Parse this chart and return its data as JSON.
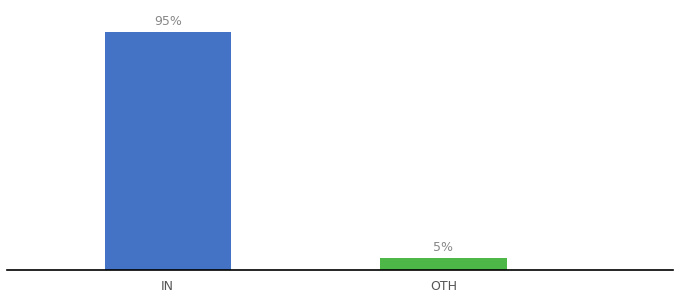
{
  "categories": [
    "IN",
    "OTH"
  ],
  "values": [
    95,
    5
  ],
  "bar_colors": [
    "#4472c4",
    "#4db848"
  ],
  "value_labels": [
    "95%",
    "5%"
  ],
  "background_color": "#ffffff",
  "ylim": [
    0,
    105
  ],
  "bar_width": 0.55,
  "label_fontsize": 9,
  "tick_fontsize": 9,
  "axis_line_color": "#000000",
  "x_positions": [
    1.0,
    2.2
  ],
  "xlim": [
    0.3,
    3.2
  ]
}
